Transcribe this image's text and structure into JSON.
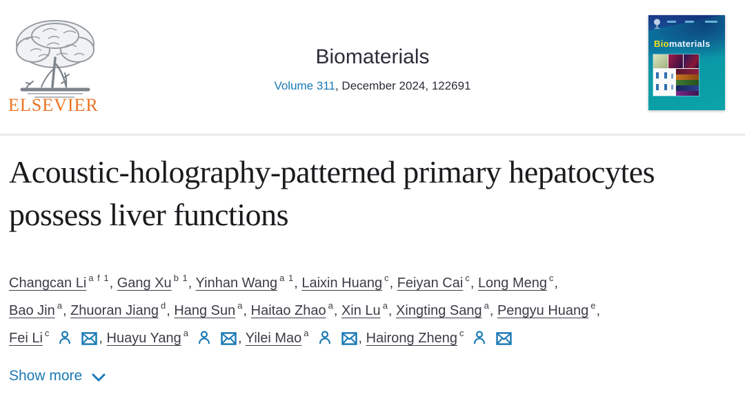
{
  "header": {
    "publisher": {
      "name": "ELSEVIER"
    },
    "journal": {
      "title": "Biomaterials",
      "volume_link": "Volume 311",
      "issue_rest": ", December 2024, 122691"
    },
    "cover": {
      "title_bio": "Bio",
      "title_rest": "materials"
    }
  },
  "article": {
    "title": "Acoustic-holography-patterned primary hepatocytes possess liver functions",
    "authors": {
      "rows": [
        [
          {
            "name": "Changcan Li",
            "sup": "a f 1",
            "corresponding": false
          },
          {
            "name": "Gang Xu",
            "sup": "b 1",
            "corresponding": false
          },
          {
            "name": "Yinhan Wang",
            "sup": "a 1",
            "corresponding": false
          },
          {
            "name": "Laixin Huang",
            "sup": "c",
            "corresponding": false
          },
          {
            "name": "Feiyan Cai",
            "sup": "c",
            "corresponding": false
          },
          {
            "name": "Long Meng",
            "sup": "c",
            "corresponding": false
          }
        ],
        [
          {
            "name": "Bao Jin",
            "sup": "a",
            "corresponding": false
          },
          {
            "name": "Zhuoran Jiang",
            "sup": "d",
            "corresponding": false
          },
          {
            "name": "Hang Sun",
            "sup": "a",
            "corresponding": false
          },
          {
            "name": "Haitao Zhao",
            "sup": "a",
            "corresponding": false
          },
          {
            "name": "Xin Lu",
            "sup": "a",
            "corresponding": false
          },
          {
            "name": "Xingting Sang",
            "sup": "a",
            "corresponding": false
          },
          {
            "name": "Pengyu Huang",
            "sup": "e",
            "corresponding": false
          }
        ],
        [
          {
            "name": "Fei Li",
            "sup": "c",
            "corresponding": true
          },
          {
            "name": "Huayu Yang",
            "sup": "a",
            "corresponding": true
          },
          {
            "name": "Yilei Mao",
            "sup": "a",
            "corresponding": true
          },
          {
            "name": "Hairong Zheng",
            "sup": "c",
            "corresponding": true
          }
        ]
      ]
    },
    "show_more_label": "Show more"
  },
  "colors": {
    "link_blue": "#1a79b5",
    "elsevier_orange": "#eb7323",
    "title_text": "#1b1b1f",
    "body_text": "#3c3c46",
    "cover_teal": "#0aa3a8",
    "cover_navy": "#1e3386",
    "cover_yellow": "#f6df1c"
  }
}
